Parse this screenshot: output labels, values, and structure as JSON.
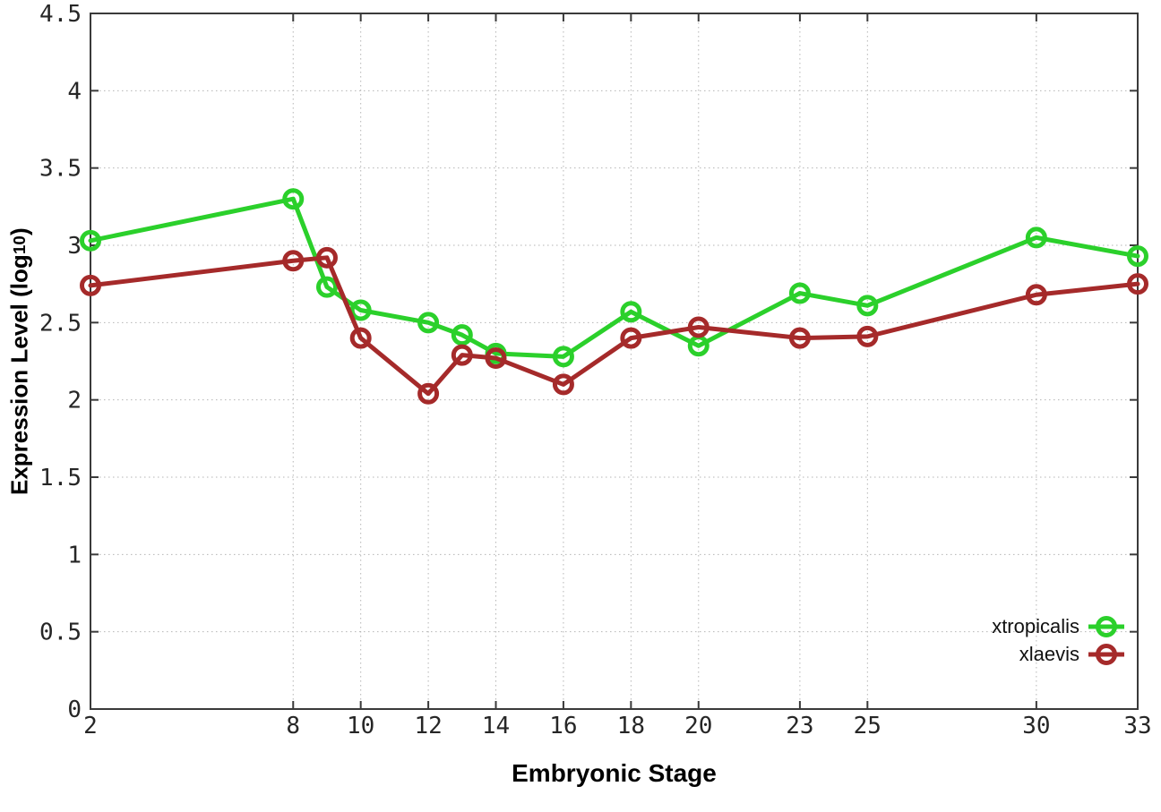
{
  "chart_data": {
    "type": "line",
    "title": "",
    "xlabel": "Embryonic Stage",
    "ylabel": "Expression Level (log10)",
    "ylabel_parts": {
      "main": "Expression Level (log",
      "sub": "10",
      "end": ")"
    },
    "x": [
      2,
      8,
      9,
      10,
      12,
      13,
      14,
      16,
      18,
      20,
      23,
      25,
      30,
      33
    ],
    "series": [
      {
        "name": "xtropicalis",
        "color": "#2bd02b",
        "values": [
          3.03,
          3.3,
          2.73,
          2.58,
          2.5,
          2.42,
          2.3,
          2.28,
          2.57,
          2.35,
          2.69,
          2.61,
          3.05,
          2.93
        ]
      },
      {
        "name": "xlaevis",
        "color": "#a52a2a",
        "values": [
          2.74,
          2.9,
          2.92,
          2.4,
          2.04,
          2.29,
          2.27,
          2.1,
          2.4,
          2.47,
          2.4,
          2.41,
          2.68,
          2.75
        ]
      }
    ],
    "xlim": [
      2,
      33
    ],
    "ylim": [
      0,
      4.5
    ],
    "xticks": [
      2,
      8,
      10,
      12,
      14,
      16,
      18,
      20,
      23,
      25,
      30,
      33
    ],
    "xtick_labels": [
      "2",
      "8",
      "10",
      "12",
      "14",
      "16",
      "18",
      "20",
      "23",
      "25",
      "30",
      "33"
    ],
    "yticks": [
      0,
      0.5,
      1,
      1.5,
      2,
      2.5,
      3,
      3.5,
      4,
      4.5
    ],
    "ytick_labels": [
      "0",
      "0.5",
      "1",
      "1.5",
      "2",
      "2.5",
      "3",
      "3.5",
      "4",
      "4.5"
    ],
    "grid": true,
    "grid_style": "dotted",
    "legend_position": "inside bottom-right",
    "marker": "open-circle",
    "colors": {
      "background": "#ffffff",
      "border": "#3a3a3a",
      "grid": "#b5b5b5",
      "tick_text": "#262626"
    }
  }
}
